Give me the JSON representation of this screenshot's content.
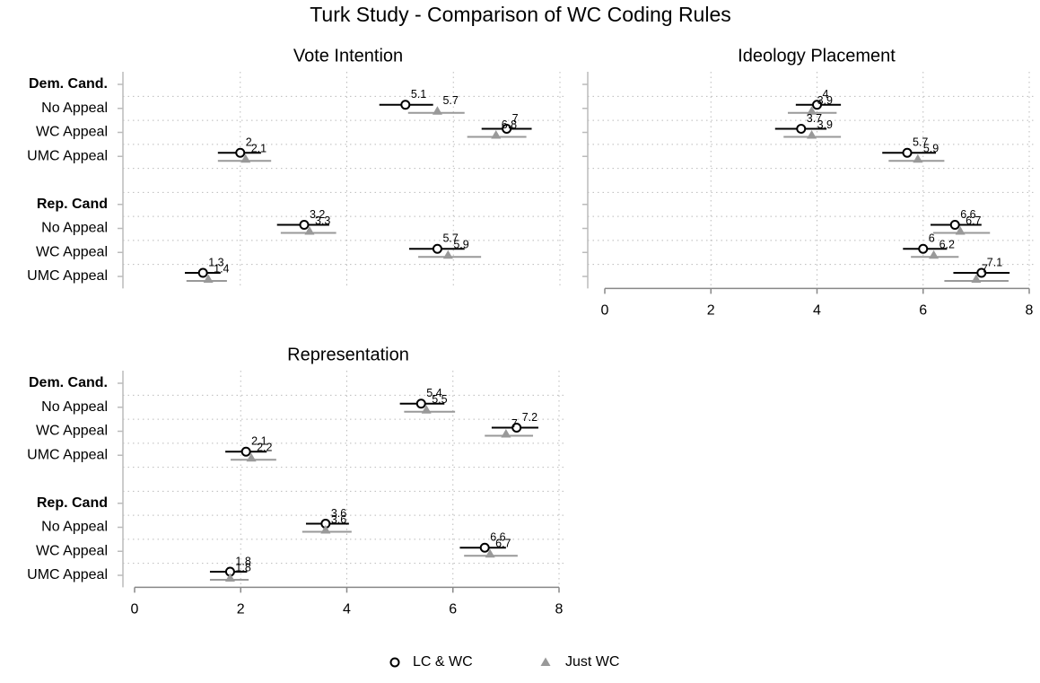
{
  "chart_data": {
    "type": "dot",
    "title": "Turk Study - Comparison of WC Coding Rules",
    "groups": [
      "Dem. Cand.",
      "Rep. Cand"
    ],
    "categories": [
      "No Appeal",
      "WC Appeal",
      "UMC Appeal",
      "No Appeal",
      "WC Appeal",
      "UMC Appeal"
    ],
    "series": [
      {
        "name": "LC & WC",
        "color": "#000000",
        "marker": "circle"
      },
      {
        "name": "Just WC",
        "color": "#999999",
        "marker": "triangle"
      }
    ],
    "grid": true,
    "panels": [
      {
        "title": "Vote Intention",
        "xlim": [
          0,
          8
        ],
        "xticks": [
          0,
          2,
          4,
          6,
          8
        ],
        "xaxis": false,
        "row_labels": true,
        "series": [
          {
            "values": [
              5.1,
              7,
              2,
              3.2,
              5.7,
              1.3
            ],
            "ci_low": [
              4.61,
              6.53,
              1.58,
              2.69,
              5.17,
              0.96
            ],
            "ci_high": [
              5.62,
              7.47,
              2.39,
              3.67,
              6.21,
              1.63
            ]
          },
          {
            "values": [
              5.7,
              6.8,
              2.1,
              3.3,
              5.9,
              1.4
            ],
            "ci_low": [
              5.15,
              6.26,
              1.58,
              2.76,
              5.34,
              0.99
            ],
            "ci_high": [
              6.21,
              7.37,
              2.58,
              3.8,
              6.52,
              1.75
            ]
          }
        ]
      },
      {
        "title": "Ideology Placement",
        "xlim": [
          0,
          8
        ],
        "xticks": [
          0,
          2,
          4,
          6,
          8
        ],
        "xaxis": true,
        "row_labels": false,
        "series": [
          {
            "values": [
              4,
              3.7,
              5.7,
              6.6,
              6,
              7.1
            ],
            "ci_low": [
              3.6,
              3.21,
              5.23,
              6.14,
              5.62,
              6.57
            ],
            "ci_high": [
              4.45,
              4.18,
              6.24,
              7.1,
              6.45,
              7.63
            ]
          },
          {
            "values": [
              3.9,
              3.9,
              5.9,
              6.7,
              6.2,
              7
            ],
            "ci_low": [
              3.45,
              3.37,
              5.35,
              6.19,
              5.77,
              6.4
            ],
            "ci_high": [
              4.37,
              4.45,
              6.4,
              7.26,
              6.67,
              7.61
            ]
          }
        ]
      },
      {
        "title": "Representation",
        "xlim": [
          0,
          8
        ],
        "xticks": [
          0,
          2,
          4,
          6,
          8
        ],
        "xaxis": true,
        "row_labels": true,
        "series": [
          {
            "values": [
              5.4,
              7.2,
              2.1,
              3.6,
              6.6,
              1.8
            ],
            "ci_low": [
              5.0,
              6.73,
              1.71,
              3.23,
              6.13,
              1.42
            ],
            "ci_high": [
              5.84,
              7.61,
              2.49,
              4.04,
              7.0,
              2.12
            ]
          },
          {
            "values": [
              5.5,
              7,
              2.2,
              3.6,
              6.7,
              1.8
            ],
            "ci_low": [
              5.08,
              6.6,
              1.81,
              3.16,
              6.21,
              1.42
            ],
            "ci_high": [
              6.04,
              7.51,
              2.67,
              4.09,
              7.22,
              2.15
            ]
          }
        ]
      }
    ]
  }
}
